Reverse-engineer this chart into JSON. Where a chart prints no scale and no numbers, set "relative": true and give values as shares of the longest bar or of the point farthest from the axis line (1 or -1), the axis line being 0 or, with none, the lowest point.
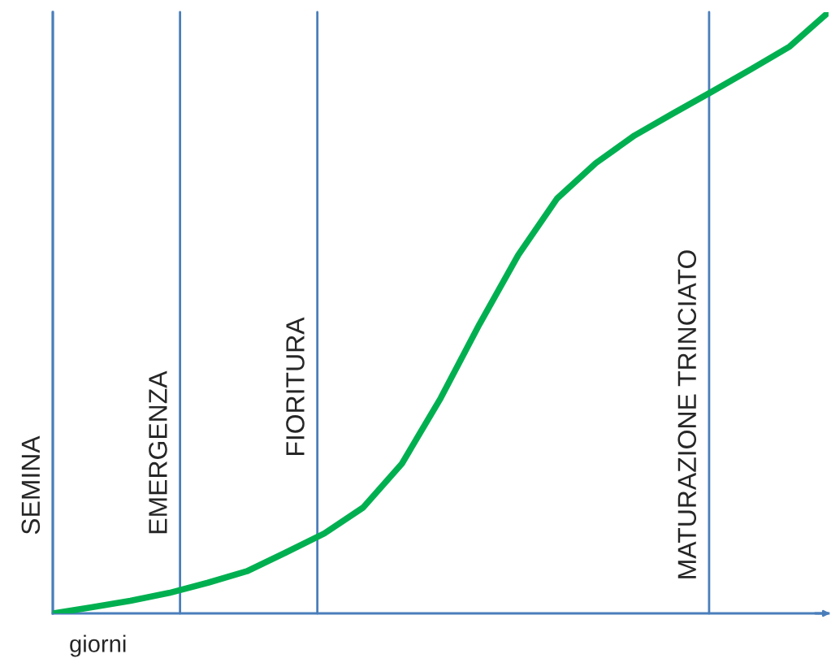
{
  "chart_data": {
    "type": "line",
    "relative": true,
    "xlabel": "giorni",
    "legend": false,
    "marker": "none",
    "line_style": "solid",
    "categories": [
      null,
      null,
      null,
      null,
      null,
      null,
      null,
      null,
      null,
      null,
      null,
      null,
      null,
      null,
      null,
      null,
      null,
      null,
      null,
      null,
      null
    ],
    "series": [
      {
        "color": "#00b050",
        "values": [
          0,
          0.01,
          0.021,
          0.034,
          0.051,
          0.07,
          0.101,
          0.133,
          0.176,
          0.249,
          0.358,
          0.481,
          0.596,
          0.69,
          0.749,
          0.795,
          0.832,
          0.868,
          0.905,
          0.943,
          1.0
        ]
      }
    ],
    "annotations": [
      "SEMINA",
      "EMERGENZA",
      "FIORITURA",
      "MATURAZIONE TRINCIATO"
    ]
  }
}
